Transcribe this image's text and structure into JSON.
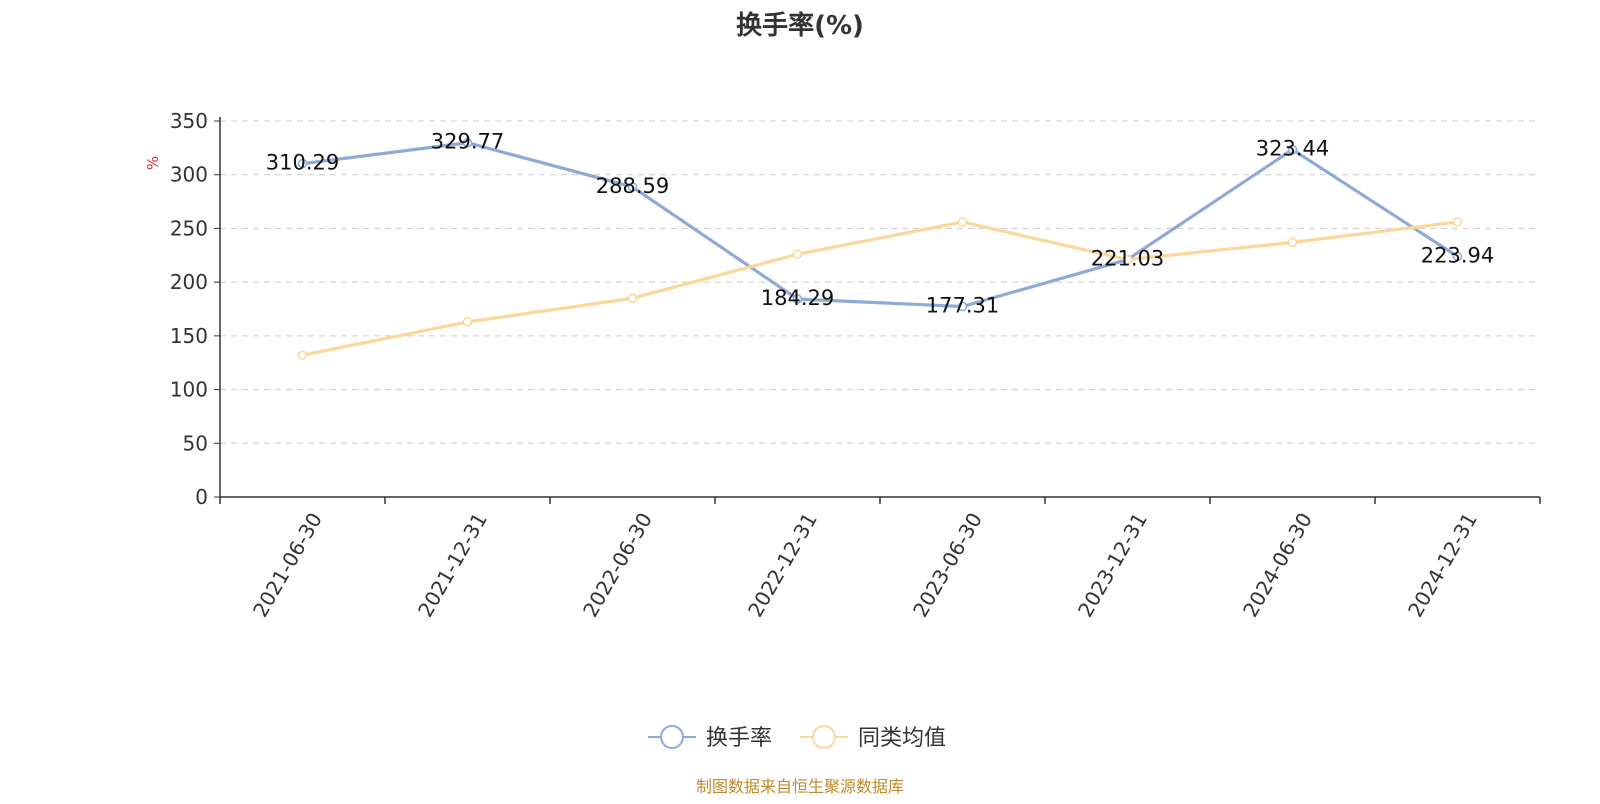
{
  "chart_data": {
    "type": "line",
    "title": "换手率(%)",
    "ylabel": "%",
    "xlabel": "",
    "categories": [
      "2021-06-30",
      "2021-12-31",
      "2022-06-30",
      "2022-12-31",
      "2023-06-30",
      "2023-12-31",
      "2024-06-30",
      "2024-12-31"
    ],
    "ylim": [
      0,
      350
    ],
    "yticks": [
      0,
      50,
      100,
      150,
      200,
      250,
      300,
      350
    ],
    "grid": true,
    "legend_position": "bottom-center",
    "series": [
      {
        "name": "换手率",
        "color": "#8eaad8",
        "values": [
          310.29,
          329.77,
          288.59,
          184.29,
          177.31,
          221.03,
          323.44,
          223.94
        ],
        "data_labels": [
          "310.29",
          "329.77",
          "288.59",
          "184.29",
          "177.31",
          "221.03",
          "323.44",
          "223.94"
        ]
      },
      {
        "name": "同类均值",
        "color": "#fbd89a",
        "values": [
          132,
          163,
          185,
          226,
          256,
          221,
          237,
          256
        ]
      }
    ]
  },
  "source_note": "制图数据来自恒生聚源数据库"
}
